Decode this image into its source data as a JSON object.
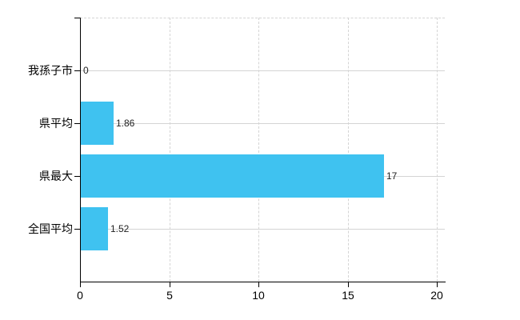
{
  "chart_data": {
    "type": "bar",
    "orientation": "horizontal",
    "title": "",
    "xlabel": "",
    "ylabel": "",
    "categories": [
      "我孫子市",
      "県平均",
      "県最大",
      "全国平均"
    ],
    "values": [
      0,
      1.86,
      17,
      1.52
    ],
    "value_labels": [
      "0",
      "1.86",
      "17",
      "1.52"
    ],
    "x_ticks": [
      "0",
      "5",
      "10",
      "15",
      "20"
    ],
    "x_tick_values": [
      0,
      5,
      10,
      15,
      20
    ],
    "xlim": [
      0,
      20
    ],
    "grid": true,
    "legend": false,
    "colors": {
      "bar": "#3fc2f0",
      "grid": "#d4d4d4",
      "axis": "#000000",
      "text": "#000000",
      "background": "#ffffff"
    }
  }
}
